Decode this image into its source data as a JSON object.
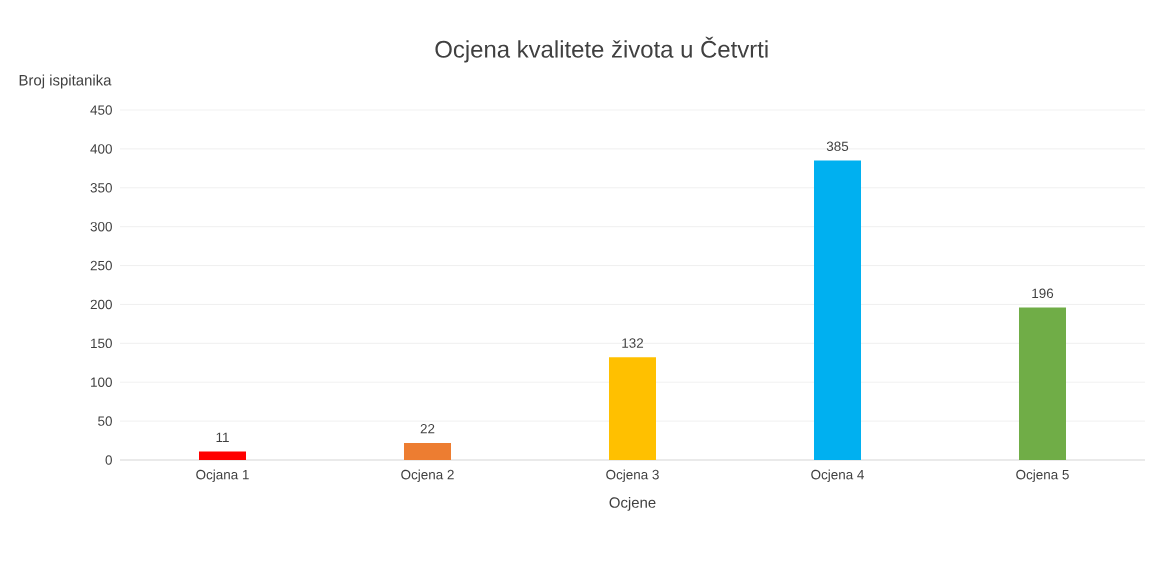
{
  "chart_data": {
    "type": "bar",
    "title": "Ocjena kvalitete života u Četvrti",
    "xlabel": "Ocjene",
    "ylabel": "Broj ispitanika",
    "categories": [
      "Ocjana 1",
      "Ocjena 2",
      "Ocjena 3",
      "Ocjena 4",
      "Ocjena 5"
    ],
    "values": [
      11,
      22,
      132,
      385,
      196
    ],
    "colors": [
      "#ff0000",
      "#ed7d31",
      "#ffc000",
      "#00b0f0",
      "#70ad47"
    ],
    "ylim": [
      0,
      450
    ],
    "yticks": [
      0,
      50,
      100,
      150,
      200,
      250,
      300,
      350,
      400,
      450
    ],
    "grid": "y",
    "data_labels": true
  }
}
